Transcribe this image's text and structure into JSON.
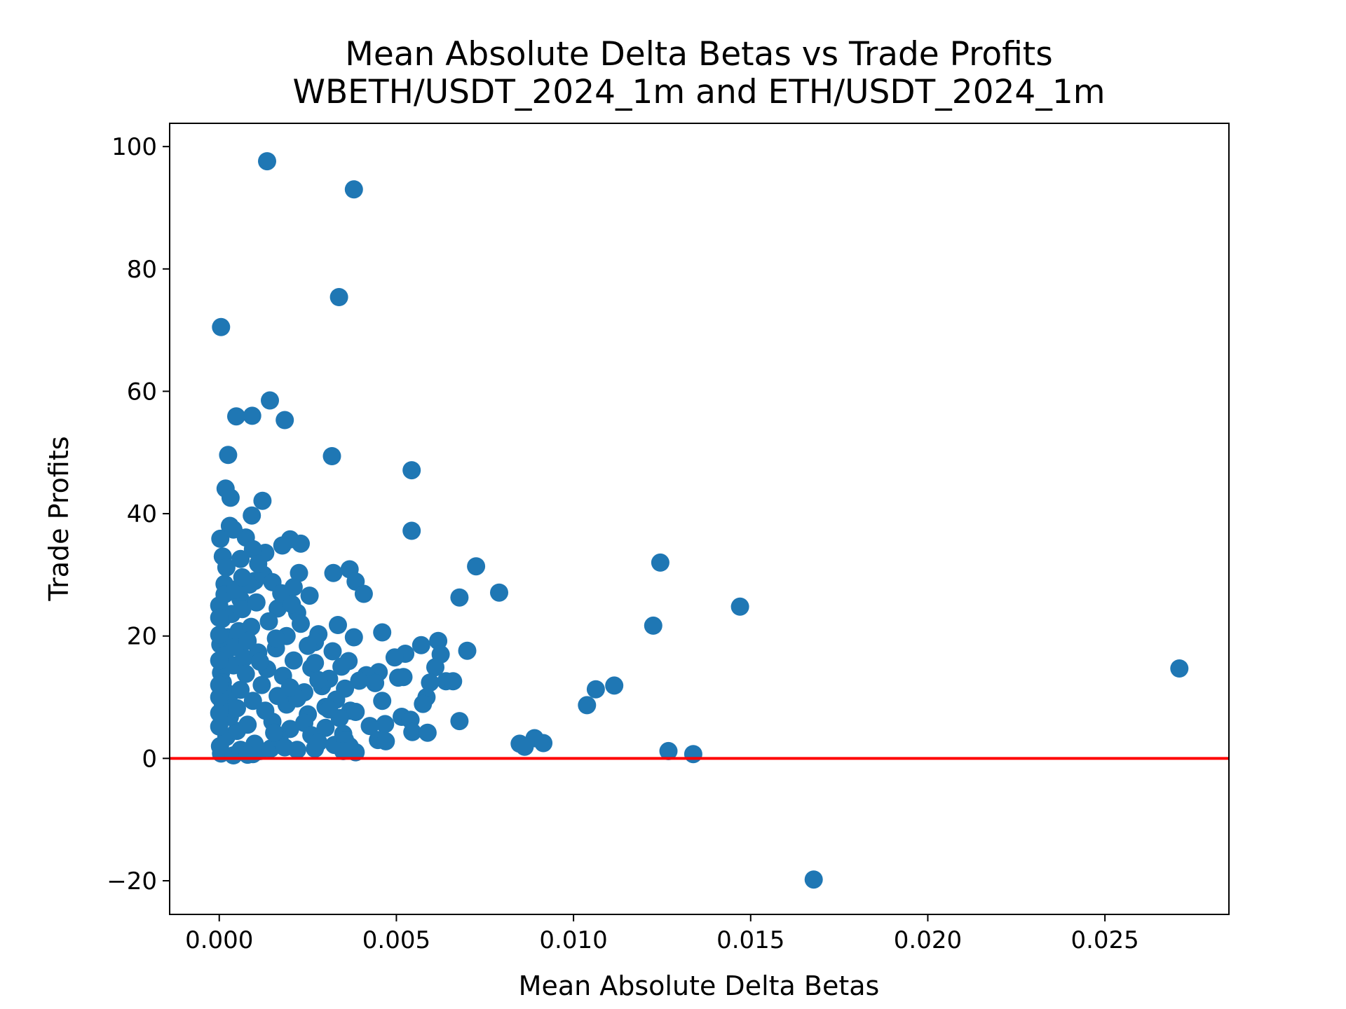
{
  "chart_data": {
    "type": "scatter",
    "title": "Mean Absolute Delta Betas vs Trade Profits",
    "subtitle": "WBETH/USDT_2024_1m and ETH/USDT_2024_1m",
    "xlabel": "Mean Absolute Delta Betas",
    "ylabel": "Trade Profits",
    "xlim": [
      -0.0014,
      0.0285
    ],
    "ylim": [
      -25.5,
      103.8
    ],
    "xticks": [
      0.0,
      0.005,
      0.01,
      0.015,
      0.02,
      0.025
    ],
    "xtick_labels": [
      "0.000",
      "0.005",
      "0.010",
      "0.015",
      "0.020",
      "0.025"
    ],
    "yticks": [
      -20,
      0,
      20,
      40,
      60,
      80,
      100
    ],
    "ytick_labels": [
      "−20",
      "0",
      "20",
      "40",
      "60",
      "80",
      "100"
    ],
    "grid": false,
    "marker_color": "#1f77b4",
    "reference_line": {
      "y": 0,
      "color": "#ff0000"
    },
    "series": [
      {
        "points": [
          [
            0.00135,
            97.6
          ],
          [
            0.0038,
            93.0
          ],
          [
            0.00338,
            75.4
          ],
          [
            5e-05,
            70.5
          ],
          [
            0.00143,
            58.5
          ],
          [
            0.00048,
            55.9
          ],
          [
            0.00093,
            56.0
          ],
          [
            0.00185,
            55.3
          ],
          [
            0.00025,
            49.6
          ],
          [
            0.00318,
            49.4
          ],
          [
            0.00543,
            47.1
          ],
          [
            0.00018,
            44.1
          ],
          [
            0.00032,
            42.6
          ],
          [
            0.00122,
            42.1
          ],
          [
            0.00092,
            39.7
          ],
          [
            0.00543,
            37.2
          ],
          [
            0.0003,
            38.0
          ],
          [
            3e-05,
            35.9
          ],
          [
            0.002,
            35.8
          ],
          [
            0.00075,
            36.1
          ],
          [
            0.0023,
            35.1
          ],
          [
            0.00178,
            34.8
          ],
          [
            0.0013,
            33.6
          ],
          [
            0.0001,
            33.0
          ],
          [
            0.00725,
            31.4
          ],
          [
            0.01245,
            32.0
          ],
          [
            0.00368,
            30.9
          ],
          [
            0.00322,
            30.3
          ],
          [
            0.00225,
            30.3
          ],
          [
            0.00385,
            28.9
          ],
          [
            0.001,
            29.0
          ],
          [
            0.00015,
            28.5
          ],
          [
            0.0079,
            27.1
          ],
          [
            0.00408,
            26.9
          ],
          [
            0.00255,
            26.6
          ],
          [
            0.00678,
            26.3
          ],
          [
            0.0006,
            26.0
          ],
          [
            0.00165,
            24.5
          ],
          [
            0.0147,
            24.8
          ],
          [
            0.0022,
            23.8
          ],
          [
            0.0,
            25.0
          ],
          [
            0.00335,
            21.8
          ],
          [
            0.01225,
            21.7
          ],
          [
            0.0046,
            20.6
          ],
          [
            0.0028,
            20.3
          ],
          [
            0.0038,
            19.8
          ],
          [
            0.00618,
            19.2
          ],
          [
            0.0057,
            18.5
          ],
          [
            0.007,
            17.6
          ],
          [
            0.00525,
            17.1
          ],
          [
            0.00495,
            16.5
          ],
          [
            0.00625,
            17.0
          ],
          [
            0.00365,
            15.9
          ],
          [
            0.0061,
            14.9
          ],
          [
            0.0045,
            14.1
          ],
          [
            0.00415,
            13.6
          ],
          [
            0.0052,
            13.3
          ],
          [
            0.00505,
            13.2
          ],
          [
            0.0271,
            14.7
          ],
          [
            0.0064,
            12.6
          ],
          [
            0.0066,
            12.6
          ],
          [
            0.00595,
            12.4
          ],
          [
            0.00395,
            12.7
          ],
          [
            0.0044,
            12.3
          ],
          [
            0.00355,
            11.4
          ],
          [
            0.01115,
            11.9
          ],
          [
            0.01063,
            11.3
          ],
          [
            0.00585,
            10.0
          ],
          [
            0.00575,
            8.9
          ],
          [
            0.0046,
            9.4
          ],
          [
            0.01038,
            8.7
          ],
          [
            0.0037,
            7.8
          ],
          [
            0.00385,
            7.6
          ],
          [
            0.00515,
            6.8
          ],
          [
            0.0054,
            6.3
          ],
          [
            0.00678,
            6.1
          ],
          [
            0.00468,
            5.6
          ],
          [
            0.00425,
            5.3
          ],
          [
            0.00545,
            4.3
          ],
          [
            0.00588,
            4.2
          ],
          [
            0.0035,
            4.0
          ],
          [
            0.00448,
            3.0
          ],
          [
            0.0047,
            2.8
          ],
          [
            0.0089,
            3.3
          ],
          [
            0.00915,
            2.5
          ],
          [
            0.00848,
            2.4
          ],
          [
            0.00862,
            1.9
          ],
          [
            0.00368,
            2.0
          ],
          [
            0.00385,
            1.0
          ],
          [
            0.0027,
            1.6
          ],
          [
            0.01268,
            1.2
          ],
          [
            0.01338,
            0.7
          ],
          [
            0.01678,
            -19.8
          ],
          [
            5e-05,
            0.8
          ],
          [
            0.0004,
            0.5
          ],
          [
            0.00095,
            0.7
          ],
          [
            0.00115,
            1.2
          ],
          [
            0.0022,
            1.4
          ],
          [
            0.00145,
            1.6
          ],
          [
            2e-05,
            2.0
          ],
          [
            0.0002,
            3.5
          ],
          [
            0.0005,
            4.5
          ],
          [
            0.0008,
            5.5
          ],
          [
            0.0015,
            6.0
          ],
          [
            0.002,
            4.8
          ],
          [
            0.0025,
            7.2
          ],
          [
            0.003,
            8.4
          ],
          [
            0.0001,
            9.0
          ],
          [
            0.0003,
            10.5
          ],
          [
            0.0006,
            11.2
          ],
          [
            0.0012,
            12.0
          ],
          [
            0.0018,
            13.5
          ],
          [
            0.0024,
            10.8
          ],
          [
            0.0029,
            11.8
          ],
          [
            0.0033,
            9.6
          ],
          [
            5e-05,
            14.0
          ],
          [
            0.0004,
            15.2
          ],
          [
            0.0007,
            16.4
          ],
          [
            0.0011,
            17.3
          ],
          [
            0.0016,
            18.0
          ],
          [
            0.0021,
            16.0
          ],
          [
            0.0026,
            14.8
          ],
          [
            0.0031,
            13.0
          ],
          [
            3e-05,
            18.6
          ],
          [
            0.00025,
            19.8
          ],
          [
            0.00055,
            20.8
          ],
          [
            0.0009,
            21.5
          ],
          [
            0.0014,
            22.4
          ],
          [
            0.0019,
            20.0
          ],
          [
            8e-05,
            22.8
          ],
          [
            0.00035,
            23.6
          ],
          [
            0.00065,
            24.4
          ],
          [
            0.00105,
            25.5
          ],
          [
            0.00015,
            26.8
          ],
          [
            0.00045,
            27.6
          ],
          [
            0.00085,
            28.4
          ],
          [
            0.00125,
            30.0
          ],
          [
            0.0002,
            31.2
          ],
          [
            0.0006,
            32.6
          ],
          [
            0.0015,
            28.8
          ],
          [
            0.00175,
            27.0
          ],
          [
            0.00205,
            25.2
          ],
          [
            0.0023,
            22.0
          ],
          [
            0.0027,
            19.0
          ],
          [
            0.0032,
            17.5
          ],
          [
            0.00345,
            15.0
          ],
          [
            0.0028,
            12.8
          ],
          [
            0.0024,
            5.8
          ],
          [
            0.0017,
            3.2
          ],
          [
            0.001,
            2.4
          ],
          [
            0.0006,
            1.4
          ],
          [
            0.0003,
            6.8
          ],
          [
            0.0013,
            7.8
          ],
          [
            0.0019,
            8.8
          ],
          [
            0.0022,
            9.8
          ],
          [
            0.0026,
            3.8
          ],
          [
            0.003,
            5.0
          ],
          [
            0.0034,
            6.6
          ],
          [
            0.0001,
            12.4
          ],
          [
            0.00075,
            13.8
          ],
          [
            0.00135,
            14.6
          ],
          [
            0.00165,
            10.2
          ],
          [
            0.002,
            11.6
          ],
          [
            0.0005,
            8.2
          ],
          [
            0.00095,
            9.4
          ],
          [
            0.00015,
            16.8
          ],
          [
            0.00045,
            18.2
          ],
          [
            0.0008,
            19.2
          ],
          [
            0.00115,
            15.8
          ],
          [
            0.00155,
            4.2
          ],
          [
            0.0028,
            2.6
          ],
          [
            0.00325,
            2.2
          ],
          [
            0.00355,
            3.0
          ],
          [
            0.0,
            5.2
          ],
          [
            0.0,
            7.4
          ],
          [
            0.0,
            10.0
          ],
          [
            0.0,
            12.0
          ],
          [
            0.0,
            16.0
          ],
          [
            0.0,
            20.2
          ],
          [
            0.0,
            23.0
          ],
          [
            0.00065,
            29.6
          ],
          [
            0.00095,
            34.2
          ],
          [
            0.0004,
            37.4
          ],
          [
            0.0011,
            31.8
          ],
          [
            0.0021,
            28.0
          ],
          [
            0.0025,
            18.4
          ],
          [
            0.0031,
            8.0
          ],
          [
            0.00185,
            1.8
          ],
          [
            0.0008,
            0.6
          ],
          [
            0.0035,
            1.2
          ],
          [
            0.0027,
            15.6
          ],
          [
            0.0016,
            19.6
          ]
        ]
      }
    ]
  }
}
